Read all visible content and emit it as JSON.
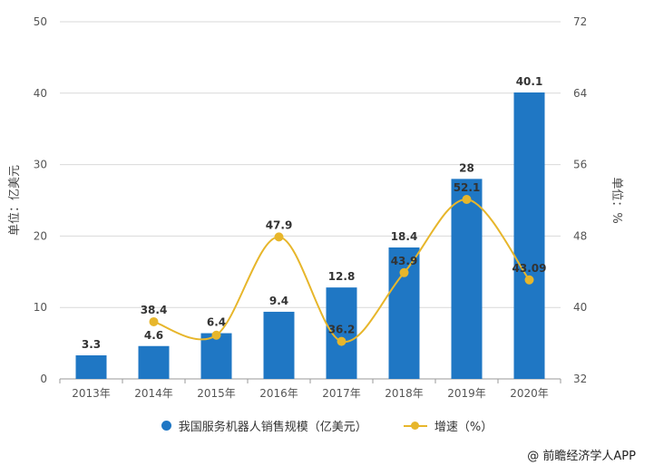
{
  "chart_data": {
    "type": "bar",
    "categories": [
      "2013年",
      "2014年",
      "2015年",
      "2016年",
      "2017年",
      "2018年",
      "2019年",
      "2020年"
    ],
    "series": [
      {
        "name": "我国服务机器人销售规模（亿美元）",
        "type": "bar",
        "axis": "left",
        "values": [
          3.3,
          4.6,
          6.4,
          9.4,
          12.8,
          18.4,
          28,
          40.1
        ],
        "labels": [
          "3.3",
          "4.6",
          "6.4",
          "9.4",
          "12.8",
          "18.4",
          "28",
          "40.1"
        ]
      },
      {
        "name": "增速（%）",
        "type": "line",
        "axis": "right",
        "values": [
          null,
          38.4,
          36.9,
          47.9,
          36.2,
          43.9,
          52.1,
          43.09
        ],
        "labels": [
          "",
          "38.4",
          "",
          "47.9",
          "36.2",
          "43.9",
          "52.1",
          "43.09"
        ]
      }
    ],
    "ylabel": "单位：亿美元",
    "y2label": "单位：%",
    "ylim": [
      0,
      50
    ],
    "y2lim": [
      32,
      72
    ],
    "yticks": [
      "0",
      "10",
      "20",
      "30",
      "40",
      "50"
    ],
    "y2ticks": [
      "32",
      "40",
      "48",
      "56",
      "64",
      "72"
    ],
    "grid": true,
    "legend": "bottom",
    "colors": {
      "bar": "#1f77c4",
      "line": "#e7b62b",
      "grid": "#d9d9d9"
    }
  },
  "legend": {
    "bar_label": "我国服务机器人销售规模（亿美元）",
    "line_label": "增速（%）"
  },
  "credit": "@ 前瞻经济学人APP"
}
